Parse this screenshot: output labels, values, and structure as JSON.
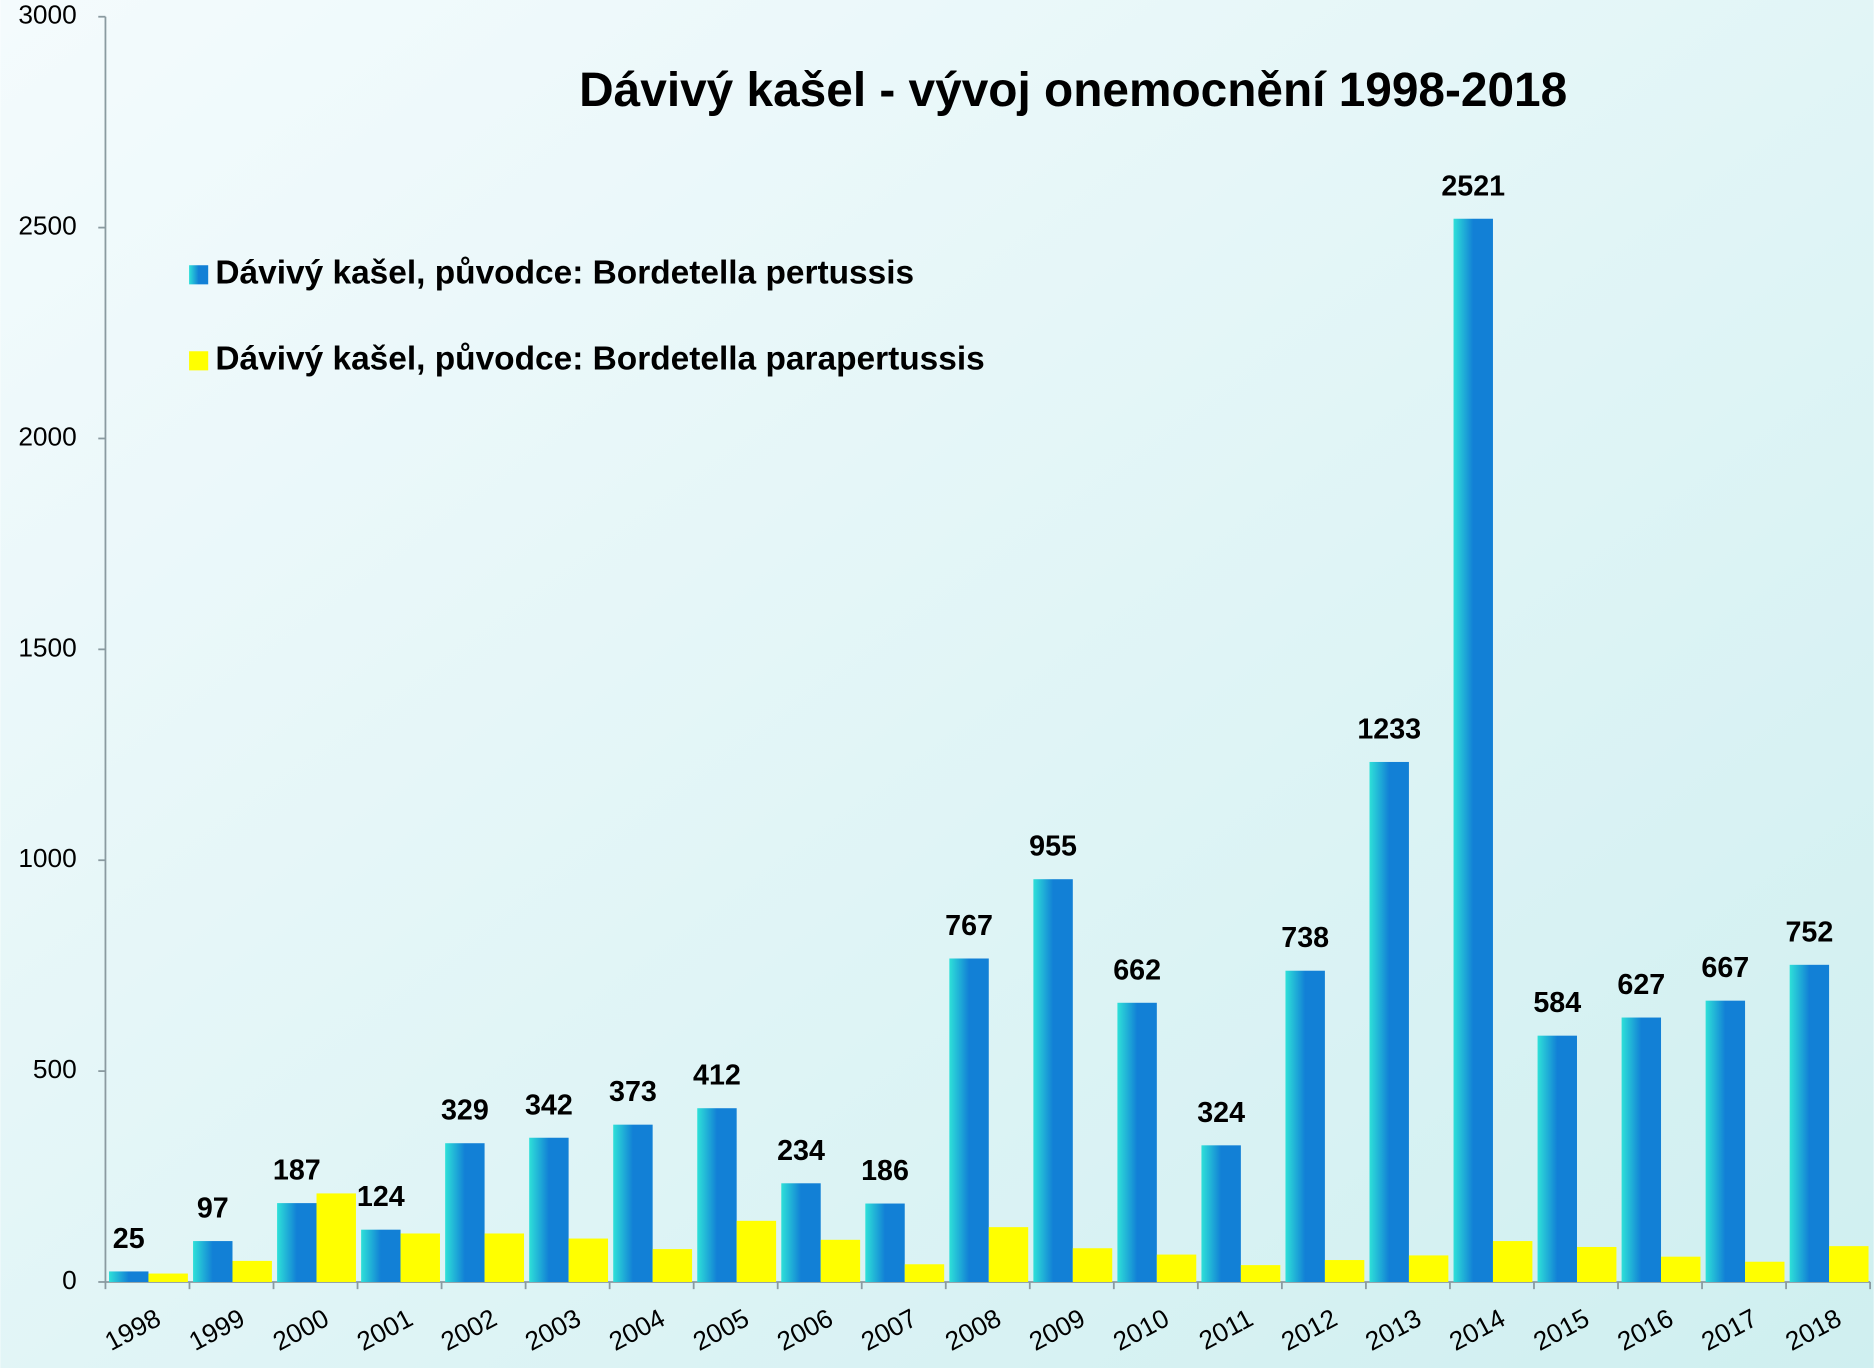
{
  "chart_data": {
    "type": "bar",
    "title": "Dávivý kašel - vývoj onemocnění 1998-2018",
    "categories": [
      "1998",
      "1999",
      "2000",
      "2001",
      "2002",
      "2003",
      "2004",
      "2005",
      "2006",
      "2007",
      "2008",
      "2009",
      "2010",
      "2011",
      "2012",
      "2013",
      "2014",
      "2015",
      "2016",
      "2017",
      "2018"
    ],
    "series": [
      {
        "name": "Dávivý kašel, původce: Bordetella pertussis",
        "color": "#1280d6",
        "values": [
          25,
          97,
          187,
          124,
          329,
          342,
          373,
          412,
          234,
          186,
          767,
          955,
          662,
          324,
          738,
          1233,
          2521,
          584,
          627,
          667,
          752
        ],
        "data_labels": true
      },
      {
        "name": "Dávivý kašel, původce: Bordetella parapertussis",
        "color": "#ffff00",
        "values": [
          20,
          50,
          210,
          115,
          115,
          103,
          78,
          145,
          100,
          42,
          130,
          80,
          65,
          40,
          52,
          63,
          97,
          83,
          60,
          48,
          85
        ],
        "data_labels": false
      }
    ],
    "ylim": [
      0,
      3000
    ],
    "yticks": [
      0,
      500,
      1000,
      1500,
      2000,
      2500,
      3000
    ],
    "grid": false,
    "legend": "top-left"
  }
}
